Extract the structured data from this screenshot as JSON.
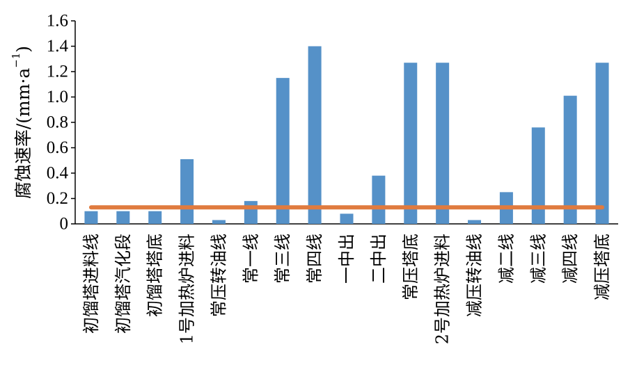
{
  "chart_data": {
    "type": "bar",
    "categories": [
      "初馏塔进料线",
      "初馏塔汽化段",
      "初馏塔塔底",
      "1号加热炉进料",
      "常压转油线",
      "常一线",
      "常三线",
      "常四线",
      "一中出",
      "二中出",
      "常压塔底",
      "2号加热炉进料",
      "减压转油线",
      "减二线",
      "减三线",
      "减四线",
      "减压塔底"
    ],
    "values": [
      0.1,
      0.1,
      0.1,
      0.51,
      0.03,
      0.18,
      1.15,
      1.4,
      0.08,
      0.38,
      1.27,
      1.27,
      0.03,
      0.25,
      0.76,
      1.01,
      1.27
    ],
    "reference_line": 0.13,
    "ylabel": "腐蚀速率/(mm·a⁻¹)",
    "ylabel_base": "腐蚀速率/(mm·a",
    "ylabel_sup": "−1",
    "ylabel_end": ")",
    "ylim": [
      0,
      1.6
    ],
    "yticks": [
      "0",
      "0.2",
      "0.4",
      "0.6",
      "0.8",
      "1.0",
      "1.2",
      "1.4",
      "1.6"
    ],
    "grid": false,
    "colors": {
      "bar": "#5591c8",
      "reference_line": "#e07b3f"
    }
  }
}
